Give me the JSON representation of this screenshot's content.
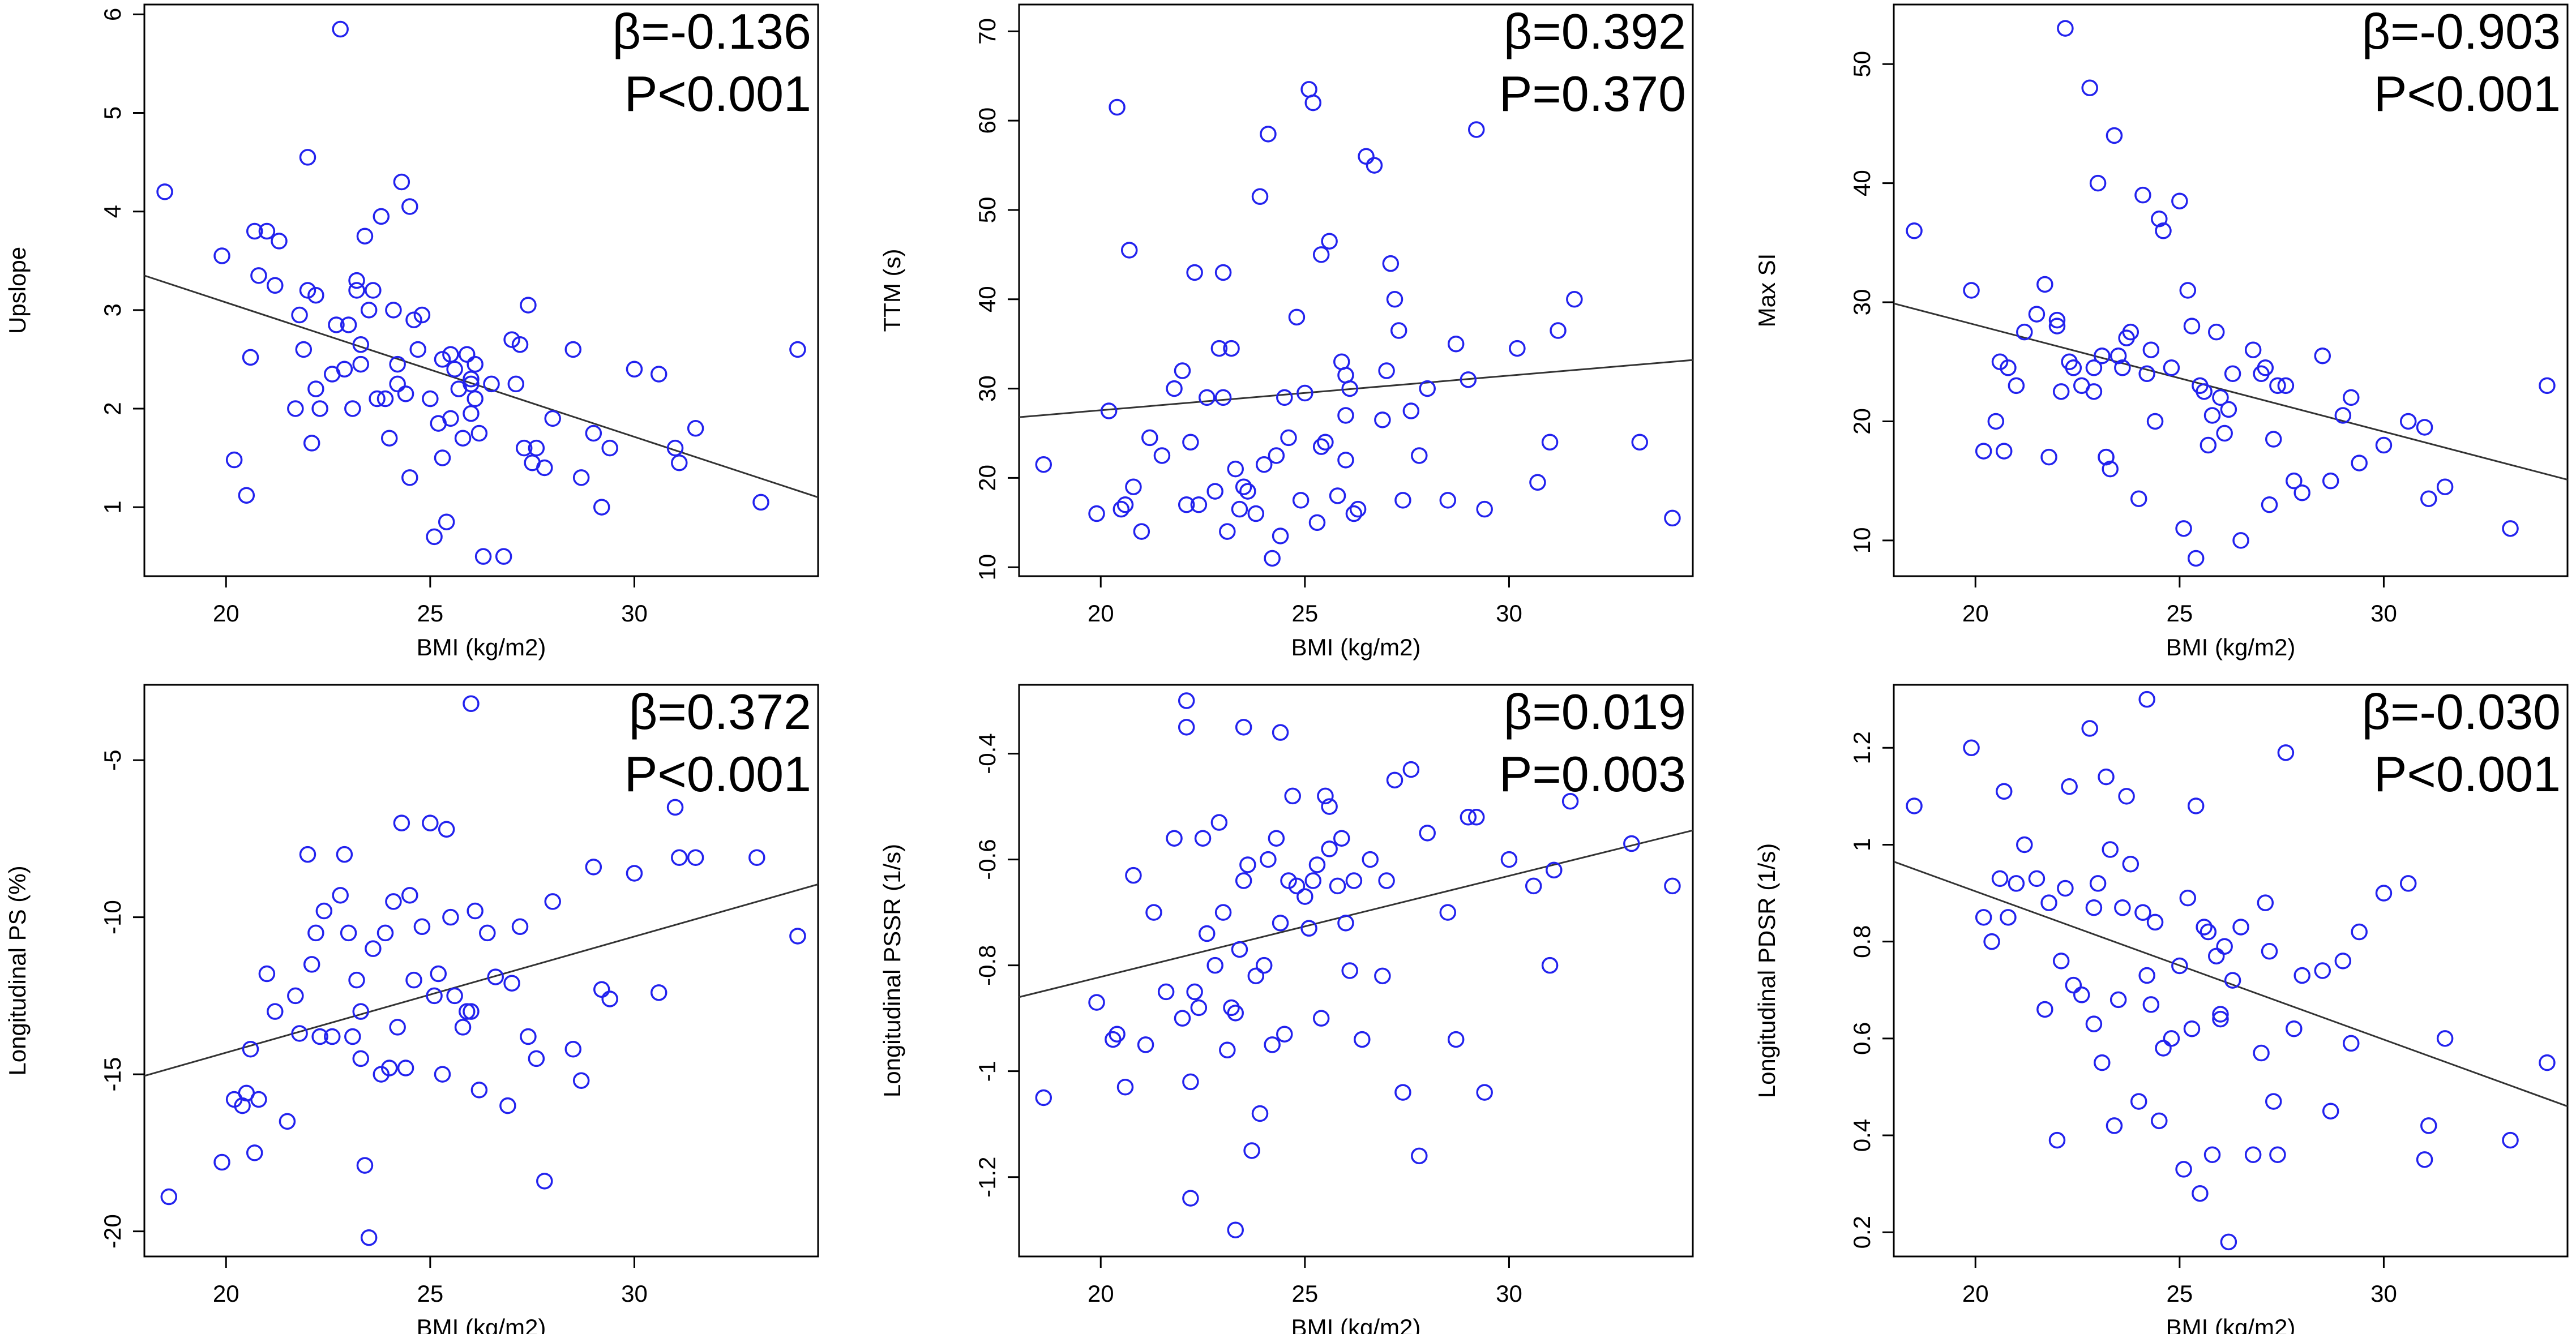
{
  "chart_data": [
    {
      "type": "scatter",
      "id": "upslope",
      "xlabel": "BMI (kg/m2)",
      "ylabel": "Upslope",
      "xlim": [
        18,
        34.5
      ],
      "ylim": [
        0.3,
        6.1
      ],
      "xticks": [
        20,
        25,
        30
      ],
      "yticks": [
        1,
        2,
        3,
        4,
        5,
        6
      ],
      "beta_label": "β=-0.136",
      "p_label": "P<0.001",
      "fit": {
        "x": [
          18,
          34.5
        ],
        "y": [
          3.35,
          1.1
        ]
      },
      "x": [
        18.5,
        19.9,
        20.2,
        20.5,
        20.6,
        20.7,
        20.8,
        21.0,
        21.2,
        21.3,
        21.7,
        21.8,
        21.9,
        22.0,
        22.0,
        22.1,
        22.2,
        22.2,
        22.3,
        22.6,
        22.7,
        22.8,
        22.9,
        23.0,
        23.1,
        23.2,
        23.2,
        23.3,
        23.3,
        23.4,
        23.5,
        23.6,
        23.7,
        23.8,
        23.9,
        24.0,
        24.1,
        24.2,
        24.2,
        24.3,
        24.4,
        24.5,
        24.5,
        24.6,
        24.7,
        24.8,
        25.0,
        25.1,
        25.2,
        25.3,
        25.3,
        25.4,
        25.5,
        25.5,
        25.6,
        25.7,
        25.8,
        25.9,
        26.0,
        26.0,
        26.1,
        26.2,
        26.3,
        26.5,
        26.8,
        27.0,
        27.1,
        27.2,
        27.3,
        27.4,
        27.5,
        27.6,
        27.8,
        28.0,
        28.5,
        28.7,
        29.0,
        29.2,
        29.4,
        30.0,
        30.6,
        31.0,
        31.1,
        31.5,
        33.1,
        34.0,
        26.0,
        26.1
      ],
      "y": [
        4.2,
        3.55,
        1.48,
        1.12,
        2.52,
        3.8,
        3.35,
        3.8,
        3.25,
        3.7,
        2.0,
        2.95,
        2.6,
        4.55,
        3.2,
        1.65,
        2.2,
        3.15,
        2.0,
        2.35,
        2.85,
        5.85,
        2.4,
        2.85,
        2.0,
        3.3,
        3.2,
        2.45,
        2.65,
        3.75,
        3.0,
        3.2,
        2.1,
        3.95,
        2.1,
        1.7,
        3.0,
        2.45,
        2.25,
        4.3,
        2.15,
        1.3,
        4.05,
        2.9,
        2.6,
        2.95,
        2.1,
        0.7,
        1.85,
        1.5,
        2.5,
        0.85,
        1.9,
        2.55,
        2.4,
        2.2,
        1.7,
        2.55,
        1.95,
        2.25,
        2.45,
        1.75,
        0.5,
        2.25,
        0.5,
        2.7,
        2.25,
        2.65,
        1.6,
        3.05,
        1.45,
        1.6,
        1.4,
        1.9,
        2.6,
        1.3,
        1.75,
        1.0,
        1.6,
        2.4,
        2.35,
        1.6,
        1.45,
        1.8,
        1.05,
        2.6,
        2.3,
        2.1
      ]
    },
    {
      "type": "scatter",
      "id": "ttm",
      "xlabel": "BMI (kg/m2)",
      "ylabel": "TTM (s)",
      "xlim": [
        18,
        34.5
      ],
      "ylim": [
        9,
        73
      ],
      "xticks": [
        20,
        25,
        30
      ],
      "yticks": [
        10,
        20,
        30,
        40,
        50,
        60,
        70
      ],
      "beta_label": "β=0.392",
      "p_label": "P=0.370",
      "fit": {
        "x": [
          18,
          34.5
        ],
        "y": [
          26.8,
          33.2
        ]
      },
      "x": [
        18.6,
        19.9,
        20.2,
        20.4,
        20.5,
        20.6,
        20.7,
        20.8,
        21.0,
        21.2,
        21.5,
        21.8,
        22.0,
        22.1,
        22.2,
        22.3,
        22.4,
        22.6,
        22.8,
        22.9,
        23.0,
        23.0,
        23.1,
        23.2,
        23.3,
        23.4,
        23.5,
        23.6,
        23.8,
        23.9,
        24.0,
        24.1,
        24.2,
        24.3,
        24.4,
        24.5,
        24.6,
        24.8,
        24.9,
        25.0,
        25.1,
        25.2,
        25.3,
        25.4,
        25.5,
        25.6,
        25.8,
        25.9,
        26.0,
        26.0,
        26.1,
        26.2,
        26.3,
        26.5,
        26.7,
        26.9,
        27.0,
        27.1,
        27.2,
        27.3,
        27.4,
        27.6,
        27.8,
        28.0,
        28.5,
        28.7,
        29.0,
        29.2,
        29.4,
        30.2,
        30.7,
        31.0,
        31.2,
        31.6,
        33.2,
        34.0,
        25.4,
        26.0
      ],
      "y": [
        21.5,
        16,
        27.5,
        61.5,
        16.5,
        17,
        45.5,
        19,
        14,
        24.5,
        22.5,
        30,
        32,
        17,
        24,
        43,
        17,
        29,
        18.5,
        34.5,
        43,
        29,
        14,
        34.5,
        21,
        16.5,
        19,
        18.5,
        16,
        51.5,
        21.5,
        58.5,
        11,
        22.5,
        13.5,
        29,
        24.5,
        38,
        17.5,
        29.5,
        63.5,
        62,
        15,
        23.5,
        24,
        46.5,
        18,
        33,
        27,
        22,
        30,
        16,
        16.5,
        56,
        55,
        26.5,
        32,
        44,
        40,
        36.5,
        17.5,
        27.5,
        22.5,
        30,
        17.5,
        35,
        31,
        59,
        16.5,
        34.5,
        19.5,
        24,
        36.5,
        40,
        24,
        15.5,
        45,
        31.5
      ]
    },
    {
      "type": "scatter",
      "id": "maxsi",
      "xlabel": "BMI (kg/m2)",
      "ylabel": "Max SI",
      "xlim": [
        18,
        34.5
      ],
      "ylim": [
        7,
        55
      ],
      "xticks": [
        20,
        25,
        30
      ],
      "yticks": [
        10,
        20,
        30,
        40,
        50
      ],
      "beta_label": "β=-0.903",
      "p_label": "P<0.001",
      "fit": {
        "x": [
          18,
          34.5
        ],
        "y": [
          29.9,
          15.1
        ]
      },
      "x": [
        18.5,
        19.9,
        20.2,
        20.5,
        20.6,
        20.7,
        20.8,
        21.0,
        21.2,
        21.5,
        21.7,
        21.8,
        22.0,
        22.1,
        22.2,
        22.3,
        22.4,
        22.6,
        22.8,
        22.9,
        23.0,
        23.1,
        23.2,
        23.3,
        23.4,
        23.5,
        23.6,
        23.7,
        23.8,
        24.0,
        24.1,
        24.2,
        24.3,
        24.4,
        24.5,
        24.6,
        24.8,
        25.0,
        25.1,
        25.2,
        25.3,
        25.4,
        25.5,
        25.6,
        25.7,
        25.8,
        25.9,
        26.0,
        26.1,
        26.2,
        26.3,
        26.5,
        26.8,
        27.0,
        27.1,
        27.2,
        27.3,
        27.4,
        27.6,
        27.8,
        28.0,
        28.5,
        28.7,
        29.0,
        29.2,
        29.4,
        30.0,
        30.6,
        31.0,
        31.1,
        31.5,
        33.1,
        34.0,
        22.0,
        22.9,
        23.2
      ],
      "y": [
        36,
        31,
        17.5,
        20,
        25,
        17.5,
        24.5,
        23,
        27.5,
        29,
        31.5,
        17,
        28.5,
        22.5,
        53,
        25,
        24.5,
        23,
        48,
        24.5,
        40,
        25.5,
        17,
        16,
        44,
        25.5,
        24.5,
        27,
        27.5,
        13.5,
        39,
        24,
        26,
        20,
        37,
        36,
        24.5,
        38.5,
        11,
        31,
        28,
        8.5,
        23,
        22.5,
        18,
        20.5,
        27.5,
        22,
        19,
        21,
        24,
        10,
        26,
        24,
        24.5,
        13,
        18.5,
        23,
        23,
        15,
        14,
        25.5,
        15,
        20.5,
        22,
        16.5,
        18,
        20,
        19.5,
        13.5,
        14.5,
        11,
        23,
        28,
        22.5,
        17
      ]
    },
    {
      "type": "scatter",
      "id": "longitudinal-ps",
      "xlabel": "BMI (kg/m2)",
      "ylabel": "Longitudinal PS (%)",
      "xlim": [
        18,
        34.5
      ],
      "ylim": [
        -20.8,
        -2.6
      ],
      "xticks": [
        20,
        25,
        30
      ],
      "yticks": [
        -20,
        -15,
        -10,
        -5
      ],
      "beta_label": "β=0.372",
      "p_label": "P<0.001",
      "fit": {
        "x": [
          18,
          34.5
        ],
        "y": [
          -15.05,
          -8.95
        ]
      },
      "x": [
        18.6,
        19.9,
        20.2,
        20.4,
        20.5,
        20.6,
        20.7,
        20.8,
        21.0,
        21.2,
        21.5,
        21.7,
        21.8,
        22.0,
        22.1,
        22.2,
        22.3,
        22.4,
        22.6,
        22.8,
        22.9,
        23.0,
        23.1,
        23.2,
        23.3,
        23.4,
        23.5,
        23.6,
        23.8,
        23.9,
        24.0,
        24.1,
        24.2,
        24.3,
        24.4,
        24.5,
        24.6,
        24.8,
        25.0,
        25.1,
        25.2,
        25.3,
        25.4,
        25.5,
        25.6,
        25.8,
        25.9,
        26.0,
        26.1,
        26.2,
        26.4,
        26.6,
        26.9,
        27.0,
        27.2,
        27.4,
        27.6,
        27.8,
        28.0,
        28.5,
        28.7,
        29.0,
        29.2,
        29.4,
        30.0,
        30.6,
        31.0,
        31.1,
        31.5,
        33.0,
        34.0,
        26.0,
        23.3
      ],
      "y": [
        -18.9,
        -17.8,
        -15.8,
        -16,
        -15.6,
        -14.2,
        -17.5,
        -15.8,
        -11.8,
        -13,
        -16.5,
        -12.5,
        -13.7,
        -8,
        -11.5,
        -10.5,
        -13.8,
        -9.8,
        -13.8,
        -9.3,
        -8,
        -10.5,
        -13.8,
        -12,
        -14.5,
        -17.9,
        -20.2,
        -11,
        -15,
        -10.5,
        -14.8,
        -9.5,
        -13.5,
        -7,
        -14.8,
        -9.3,
        -12,
        -10.3,
        -7,
        -12.5,
        -11.8,
        -15,
        -7.2,
        -10,
        -12.5,
        -13.5,
        -13,
        -13,
        -9.8,
        -15.5,
        -10.5,
        -11.9,
        -16,
        -12.1,
        -10.3,
        -13.8,
        -14.5,
        -18.4,
        -9.5,
        -14.2,
        -15.2,
        -8.4,
        -12.3,
        -12.6,
        -8.6,
        -12.4,
        -6.5,
        -8.1,
        -8.1,
        -8.1,
        -10.6,
        -3.2,
        -13
      ]
    },
    {
      "type": "scatter",
      "id": "longitudinal-pssr",
      "xlabel": "BMI (kg/m2)",
      "ylabel": "Longitudinal PSSR (1/s)",
      "xlim": [
        18,
        34.5
      ],
      "ylim": [
        -1.35,
        -0.27
      ],
      "xticks": [
        20,
        25,
        30
      ],
      "yticks": [
        -1.2,
        -1.0,
        -0.8,
        -0.6,
        -0.4
      ],
      "beta_label": "β=0.019",
      "p_label": "P=0.003",
      "fit": {
        "x": [
          18,
          34.5
        ],
        "y": [
          -0.86,
          -0.545
        ]
      },
      "x": [
        18.6,
        19.9,
        20.3,
        20.4,
        20.6,
        20.8,
        21.1,
        21.3,
        21.6,
        21.8,
        22.0,
        22.1,
        22.2,
        22.3,
        22.4,
        22.5,
        22.6,
        22.8,
        22.9,
        23.0,
        23.1,
        23.2,
        23.3,
        23.4,
        23.5,
        23.6,
        23.7,
        23.8,
        23.9,
        24.0,
        24.1,
        24.2,
        24.3,
        24.4,
        24.5,
        24.6,
        24.7,
        24.8,
        25.0,
        25.1,
        25.2,
        25.3,
        25.4,
        25.5,
        25.6,
        25.8,
        25.9,
        26.0,
        26.1,
        26.2,
        26.4,
        26.6,
        26.9,
        27.0,
        27.2,
        27.4,
        27.6,
        27.8,
        28.0,
        28.5,
        28.7,
        29.0,
        29.2,
        29.4,
        30.0,
        30.6,
        31.0,
        31.1,
        31.5,
        33.0,
        34.0,
        22.2,
        23.3,
        23.5,
        25.6
      ],
      "y": [
        -1.05,
        -0.87,
        -0.94,
        -0.93,
        -1.03,
        -0.63,
        -0.95,
        -0.7,
        -0.85,
        -0.56,
        -0.9,
        -0.35,
        -1.02,
        -0.85,
        -0.88,
        -0.56,
        -0.74,
        -0.8,
        -0.53,
        -0.7,
        -0.96,
        -0.88,
        -0.89,
        -0.77,
        -0.64,
        -0.61,
        -1.15,
        -0.82,
        -1.08,
        -0.8,
        -0.6,
        -0.95,
        -0.56,
        -0.72,
        -0.93,
        -0.64,
        -0.48,
        -0.65,
        -0.67,
        -0.73,
        -0.64,
        -0.61,
        -0.9,
        -0.48,
        -0.5,
        -0.65,
        -0.56,
        -0.72,
        -0.81,
        -0.64,
        -0.94,
        -0.6,
        -0.82,
        -0.64,
        -0.45,
        -1.04,
        -0.43,
        -1.16,
        -0.55,
        -0.7,
        -0.94,
        -0.52,
        -0.52,
        -1.04,
        -0.6,
        -0.65,
        -0.8,
        -0.62,
        -0.49,
        -0.57,
        -0.65,
        -1.24,
        -1.3,
        -0.35,
        -0.58
      ],
      "extra": {
        "x": [
          22.1,
          24.4
        ],
        "y": [
          -0.3,
          -0.36
        ]
      }
    },
    {
      "type": "scatter",
      "id": "longitudinal-pdsr",
      "xlabel": "BMI (kg/m2)",
      "ylabel": "Longitudinal PDSR (1/s)",
      "xlim": [
        18,
        34.5
      ],
      "ylim": [
        0.15,
        1.33
      ],
      "xticks": [
        20,
        25,
        30
      ],
      "yticks": [
        0.2,
        0.4,
        0.6,
        0.8,
        1.0,
        1.2
      ],
      "beta_label": "β=-0.030",
      "p_label": "P<0.001",
      "fit": {
        "x": [
          18,
          34.5
        ],
        "y": [
          0.965,
          0.46
        ]
      },
      "x": [
        18.5,
        19.9,
        20.2,
        20.4,
        20.6,
        20.7,
        20.8,
        21.0,
        21.2,
        21.5,
        21.7,
        21.8,
        22.0,
        22.1,
        22.2,
        22.3,
        22.4,
        22.6,
        22.8,
        22.9,
        23.0,
        23.1,
        23.2,
        23.3,
        23.4,
        23.5,
        23.6,
        23.7,
        23.8,
        24.0,
        24.1,
        24.2,
        24.3,
        24.4,
        24.5,
        24.6,
        24.8,
        25.0,
        25.1,
        25.2,
        25.3,
        25.4,
        25.5,
        25.6,
        25.7,
        25.8,
        25.9,
        26.0,
        26.1,
        26.2,
        26.3,
        26.5,
        26.8,
        27.0,
        27.1,
        27.2,
        27.3,
        27.4,
        27.6,
        27.8,
        28.0,
        28.5,
        28.7,
        29.0,
        29.2,
        29.4,
        30.0,
        30.6,
        31.0,
        31.1,
        31.5,
        33.1,
        34.0,
        22.9,
        24.2,
        26.0
      ],
      "y": [
        1.08,
        1.2,
        0.85,
        0.8,
        0.93,
        1.11,
        0.85,
        0.92,
        1.0,
        0.93,
        0.66,
        0.88,
        0.39,
        0.76,
        0.91,
        1.12,
        0.71,
        0.69,
        1.24,
        0.87,
        0.92,
        0.55,
        1.14,
        0.99,
        0.42,
        0.68,
        0.87,
        1.1,
        0.96,
        0.47,
        0.86,
        0.73,
        0.67,
        0.84,
        0.43,
        0.58,
        0.6,
        0.75,
        0.33,
        0.89,
        0.62,
        1.08,
        0.28,
        0.83,
        0.82,
        0.36,
        0.77,
        0.65,
        0.79,
        0.18,
        0.72,
        0.83,
        0.36,
        0.57,
        0.88,
        0.78,
        0.47,
        0.36,
        1.19,
        0.62,
        0.73,
        0.74,
        0.45,
        0.76,
        0.59,
        0.82,
        0.9,
        0.92,
        0.35,
        0.42,
        0.6,
        0.39,
        0.55,
        0.63,
        1.3,
        0.64
      ]
    }
  ]
}
